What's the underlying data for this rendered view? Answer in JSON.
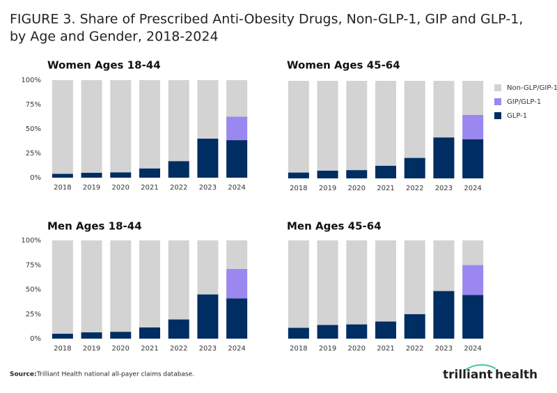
{
  "title_lines": [
    "FIGURE 3. Share of Prescribed Anti-Obesity Drugs, Non-GLP-1, GIP and GLP-1,",
    "by Age and Gender, 2018-2024"
  ],
  "source_label": "Source:",
  "source_text": "Trilliant Health national all-payer claims database.",
  "logo": [
    "trilliant",
    "health"
  ],
  "chart_data": [
    {
      "type": "stacked_bar",
      "title": "Women Ages 18-44",
      "categories": [
        "2018",
        "2019",
        "2020",
        "2021",
        "2022",
        "2023",
        "2024"
      ],
      "series": [
        {
          "color": "#002d62",
          "values": [
            4,
            5,
            5.5,
            9.5,
            17,
            40,
            38.5
          ]
        },
        {
          "color": "#9b87f0",
          "values": [
            0,
            0,
            0,
            0,
            0,
            0,
            24
          ]
        },
        {
          "color": "#d3d3d3",
          "values": [
            96,
            95,
            94.5,
            90.5,
            83,
            60,
            37.5
          ]
        }
      ],
      "ylim": [
        0,
        100
      ],
      "yticks": [
        {
          "value": 0,
          "label": "0%"
        },
        {
          "value": 25,
          "label": "25%"
        },
        {
          "value": 50,
          "label": "50%"
        },
        {
          "value": 75,
          "label": "75%"
        },
        {
          "value": 100,
          "label": "100%"
        }
      ]
    },
    {
      "type": "stacked_bar",
      "title": "Women Ages 45-64",
      "categories": [
        "2018",
        "2019",
        "2020",
        "2021",
        "2022",
        "2023",
        "2024"
      ],
      "series": [
        {
          "name": "GLP-1",
          "color": "#002d62",
          "values": [
            6,
            8,
            8.5,
            13,
            21,
            42,
            40
          ]
        },
        {
          "name": "GIP/GLP-1",
          "color": "#9b87f0",
          "values": [
            0,
            0,
            0,
            0,
            0,
            0,
            25
          ]
        },
        {
          "name": "Non-GLP/GIP-1",
          "color": "#d3d3d3",
          "values": [
            94,
            92,
            91.5,
            87,
            79,
            58,
            35
          ]
        }
      ],
      "ylim": [
        0,
        100
      ],
      "legend": "right"
    },
    {
      "type": "stacked_bar",
      "title": "Men Ages 18-44",
      "categories": [
        "2018",
        "2019",
        "2020",
        "2021",
        "2022",
        "2023",
        "2024"
      ],
      "series": [
        {
          "color": "#002d62",
          "values": [
            5,
            6.5,
            7,
            11.5,
            19.5,
            45,
            41
          ]
        },
        {
          "color": "#9b87f0",
          "values": [
            0,
            0,
            0,
            0,
            0,
            0,
            30
          ]
        },
        {
          "color": "#d3d3d3",
          "values": [
            95,
            93.5,
            93,
            88.5,
            80.5,
            55,
            29
          ]
        }
      ],
      "ylim": [
        0,
        100
      ],
      "yticks": [
        {
          "value": 0,
          "label": "0%"
        },
        {
          "value": 25,
          "label": "25%"
        },
        {
          "value": 50,
          "label": "50%"
        },
        {
          "value": 75,
          "label": "75%"
        },
        {
          "value": 100,
          "label": "100%"
        }
      ]
    },
    {
      "type": "stacked_bar",
      "title": "Men Ages 45-64",
      "categories": [
        "2018",
        "2019",
        "2020",
        "2021",
        "2022",
        "2023",
        "2024"
      ],
      "series": [
        {
          "color": "#002d62",
          "values": [
            11,
            14,
            14.5,
            17.5,
            25,
            48.5,
            44.5
          ]
        },
        {
          "color": "#9b87f0",
          "values": [
            0,
            0,
            0,
            0,
            0,
            0,
            30.5
          ]
        },
        {
          "color": "#d3d3d3",
          "values": [
            89,
            86,
            85.5,
            82.5,
            75,
            51.5,
            25
          ]
        }
      ],
      "ylim": [
        0,
        100
      ]
    }
  ]
}
